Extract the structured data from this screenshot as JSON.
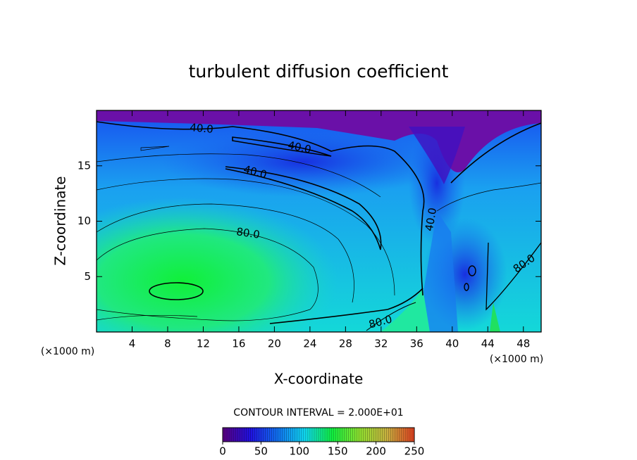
{
  "chart_data": {
    "type": "contour",
    "title": "turbulent diffusion coefficient",
    "x_label": "X-coordinate",
    "y_label": "Z-coordinate",
    "x_unit": "(×1000 m)",
    "x_unit_right": "(×1000 m)",
    "contour_interval": "CONTOUR INTERVAL = 2.000E+01",
    "xlim": [
      0,
      50
    ],
    "xticks": [
      4,
      8,
      12,
      16,
      20,
      24,
      28,
      32,
      36,
      40,
      44,
      48
    ],
    "ylim": [
      0,
      20
    ],
    "yticks": [
      5,
      10,
      15
    ],
    "contour_labels": [
      "40.0",
      "40.0",
      "40.0",
      "40.0",
      "80.0",
      "80.0",
      "80.0"
    ],
    "colorbar": {
      "lim": [
        0,
        250
      ],
      "ticks": [
        0,
        50,
        100,
        150,
        200,
        250
      ],
      "colors": [
        "#5a0080",
        "#2010e0",
        "#1070f0",
        "#10d8f0",
        "#10f040",
        "#90e030",
        "#c8b040",
        "#e04020"
      ]
    }
  }
}
